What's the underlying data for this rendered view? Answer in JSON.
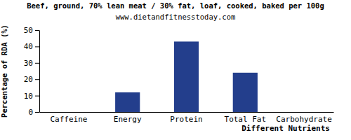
{
  "chart_data": {
    "type": "bar",
    "title": "Beef, ground, 70% lean meat / 30% fat, loaf, cooked, baked per 100g",
    "subtitle": "www.dietandfitnesstoday.com",
    "x_label": "Different Nutrients",
    "y_label": "Percentage of RDA (%)",
    "categories": [
      "Caffeine",
      "Energy",
      "Protein",
      "Total Fat",
      "Carbohydrate"
    ],
    "values": [
      0,
      12,
      43,
      24,
      0
    ],
    "color": "#233e8c",
    "ylim": [
      0,
      50
    ],
    "yticks": [
      0,
      10,
      20,
      30,
      40,
      50
    ],
    "grid": false
  }
}
